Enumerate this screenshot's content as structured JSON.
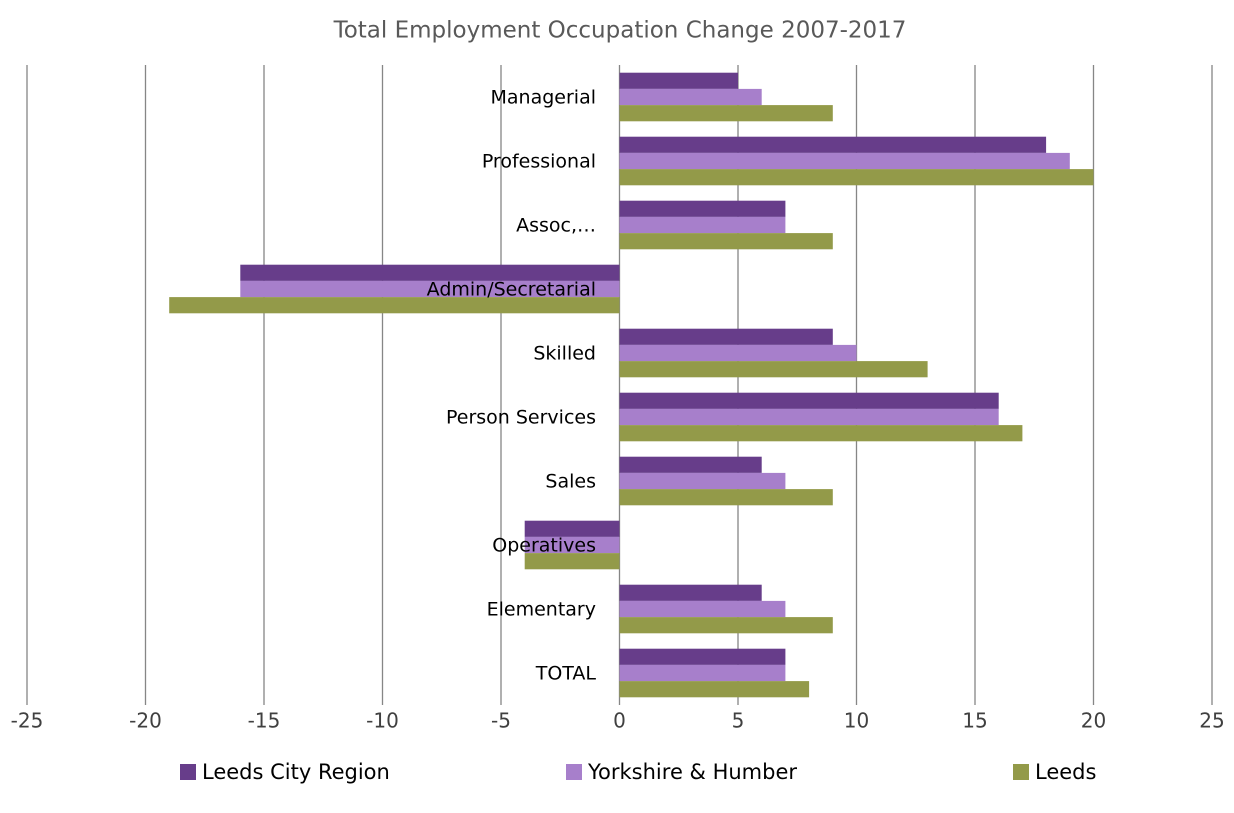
{
  "chart_data": {
    "type": "bar",
    "orientation": "horizontal",
    "title": "Total Employment Occupation Change 2007-2017",
    "categories": [
      "Managerial",
      "Professional",
      "Assoc,…",
      "Admin/Secretarial",
      "Skilled",
      "Person Services",
      "Sales",
      "Operatives",
      "Elementary",
      "TOTAL"
    ],
    "series": [
      {
        "name": "Leeds City Region",
        "color": "#673d8a",
        "values": [
          5,
          18,
          7,
          -16,
          9,
          16,
          6,
          -4,
          6,
          7
        ]
      },
      {
        "name": "Yorkshire & Humber",
        "color": "#a77fcb",
        "values": [
          6,
          19,
          7,
          -16,
          10,
          16,
          7,
          -4,
          7,
          7
        ]
      },
      {
        "name": "Leeds",
        "color": "#939a49",
        "values": [
          9,
          20,
          9,
          -19,
          13,
          17,
          9,
          -4,
          9,
          8
        ]
      }
    ],
    "xlim": [
      -25,
      25
    ],
    "xticks": [
      -25,
      -20,
      -15,
      -10,
      -5,
      0,
      5,
      10,
      15,
      20,
      25
    ],
    "grid": true,
    "legend": "bottom"
  }
}
